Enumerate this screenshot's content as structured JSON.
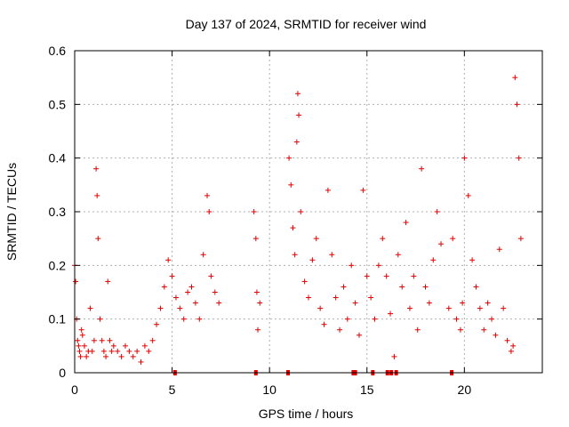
{
  "chart_data": {
    "type": "scatter",
    "title": "Day 137 of 2024, SRMTID for receiver wind",
    "xlabel": "GPS time / hours",
    "ylabel": "SRMTID / TECUs",
    "xlim": [
      0,
      24
    ],
    "ylim": [
      0,
      0.6
    ],
    "xticks": [
      "0",
      "5",
      "10",
      "15",
      "20"
    ],
    "yticks": [
      "0",
      "0.1",
      "0.2",
      "0.3",
      "0.4",
      "0.5",
      "0.6"
    ],
    "grid": true,
    "marker": "+",
    "color": "#e00000",
    "series": [
      {
        "name": "SRMTID",
        "x": [
          0.0,
          0.05,
          0.1,
          0.15,
          0.2,
          0.25,
          0.3,
          0.35,
          0.4,
          0.5,
          0.6,
          0.7,
          0.8,
          0.9,
          1.0,
          1.1,
          1.15,
          1.2,
          1.3,
          1.4,
          1.5,
          1.6,
          1.7,
          1.8,
          1.9,
          2.0,
          2.2,
          2.4,
          2.6,
          2.8,
          3.0,
          3.2,
          3.4,
          3.6,
          3.8,
          4.0,
          4.2,
          4.4,
          4.6,
          4.8,
          5.0,
          5.2,
          5.4,
          5.6,
          5.8,
          6.0,
          6.2,
          6.4,
          6.6,
          6.8,
          6.9,
          7.0,
          7.2,
          7.4,
          9.2,
          9.3,
          9.35,
          9.4,
          9.5,
          11.0,
          11.1,
          11.2,
          11.3,
          11.4,
          11.45,
          11.5,
          11.6,
          11.8,
          12.0,
          12.2,
          12.4,
          12.6,
          12.8,
          13.0,
          13.2,
          13.4,
          13.6,
          13.8,
          14.0,
          14.2,
          14.4,
          14.6,
          14.8,
          15.0,
          15.2,
          15.4,
          15.6,
          15.8,
          16.0,
          16.2,
          16.4,
          16.6,
          16.8,
          17.0,
          17.2,
          17.4,
          17.6,
          17.8,
          18.0,
          18.2,
          18.4,
          18.6,
          18.8,
          19.2,
          19.4,
          19.6,
          19.8,
          19.9,
          20.0,
          20.2,
          20.4,
          20.6,
          20.8,
          21.0,
          21.2,
          21.4,
          21.6,
          21.8,
          22.0,
          22.2,
          22.4,
          22.5,
          22.6,
          22.7,
          22.8,
          22.9
        ],
        "y": [
          0.2,
          0.17,
          0.1,
          0.06,
          0.05,
          0.04,
          0.03,
          0.08,
          0.07,
          0.05,
          0.03,
          0.04,
          0.12,
          0.04,
          0.06,
          0.38,
          0.33,
          0.25,
          0.1,
          0.06,
          0.04,
          0.03,
          0.17,
          0.06,
          0.04,
          0.05,
          0.04,
          0.03,
          0.05,
          0.04,
          0.03,
          0.04,
          0.02,
          0.05,
          0.04,
          0.06,
          0.09,
          0.12,
          0.16,
          0.21,
          0.18,
          0.14,
          0.12,
          0.1,
          0.15,
          0.16,
          0.13,
          0.1,
          0.22,
          0.33,
          0.3,
          0.18,
          0.15,
          0.13,
          0.3,
          0.25,
          0.15,
          0.08,
          0.13,
          0.4,
          0.35,
          0.27,
          0.22,
          0.43,
          0.52,
          0.48,
          0.3,
          0.17,
          0.14,
          0.21,
          0.25,
          0.12,
          0.09,
          0.34,
          0.22,
          0.14,
          0.08,
          0.16,
          0.1,
          0.2,
          0.13,
          0.07,
          0.34,
          0.18,
          0.14,
          0.1,
          0.2,
          0.25,
          0.18,
          0.11,
          0.03,
          0.22,
          0.16,
          0.28,
          0.12,
          0.18,
          0.08,
          0.38,
          0.16,
          0.13,
          0.21,
          0.3,
          0.24,
          0.12,
          0.25,
          0.1,
          0.08,
          0.13,
          0.4,
          0.33,
          0.21,
          0.16,
          0.12,
          0.08,
          0.13,
          0.1,
          0.07,
          0.23,
          0.12,
          0.06,
          0.04,
          0.05,
          0.55,
          0.5,
          0.4,
          0.25
        ]
      }
    ],
    "gap_markers_x": [
      5.15,
      9.3,
      10.95,
      14.3,
      14.4,
      15.3,
      16.05,
      16.25,
      16.5,
      19.35
    ]
  }
}
